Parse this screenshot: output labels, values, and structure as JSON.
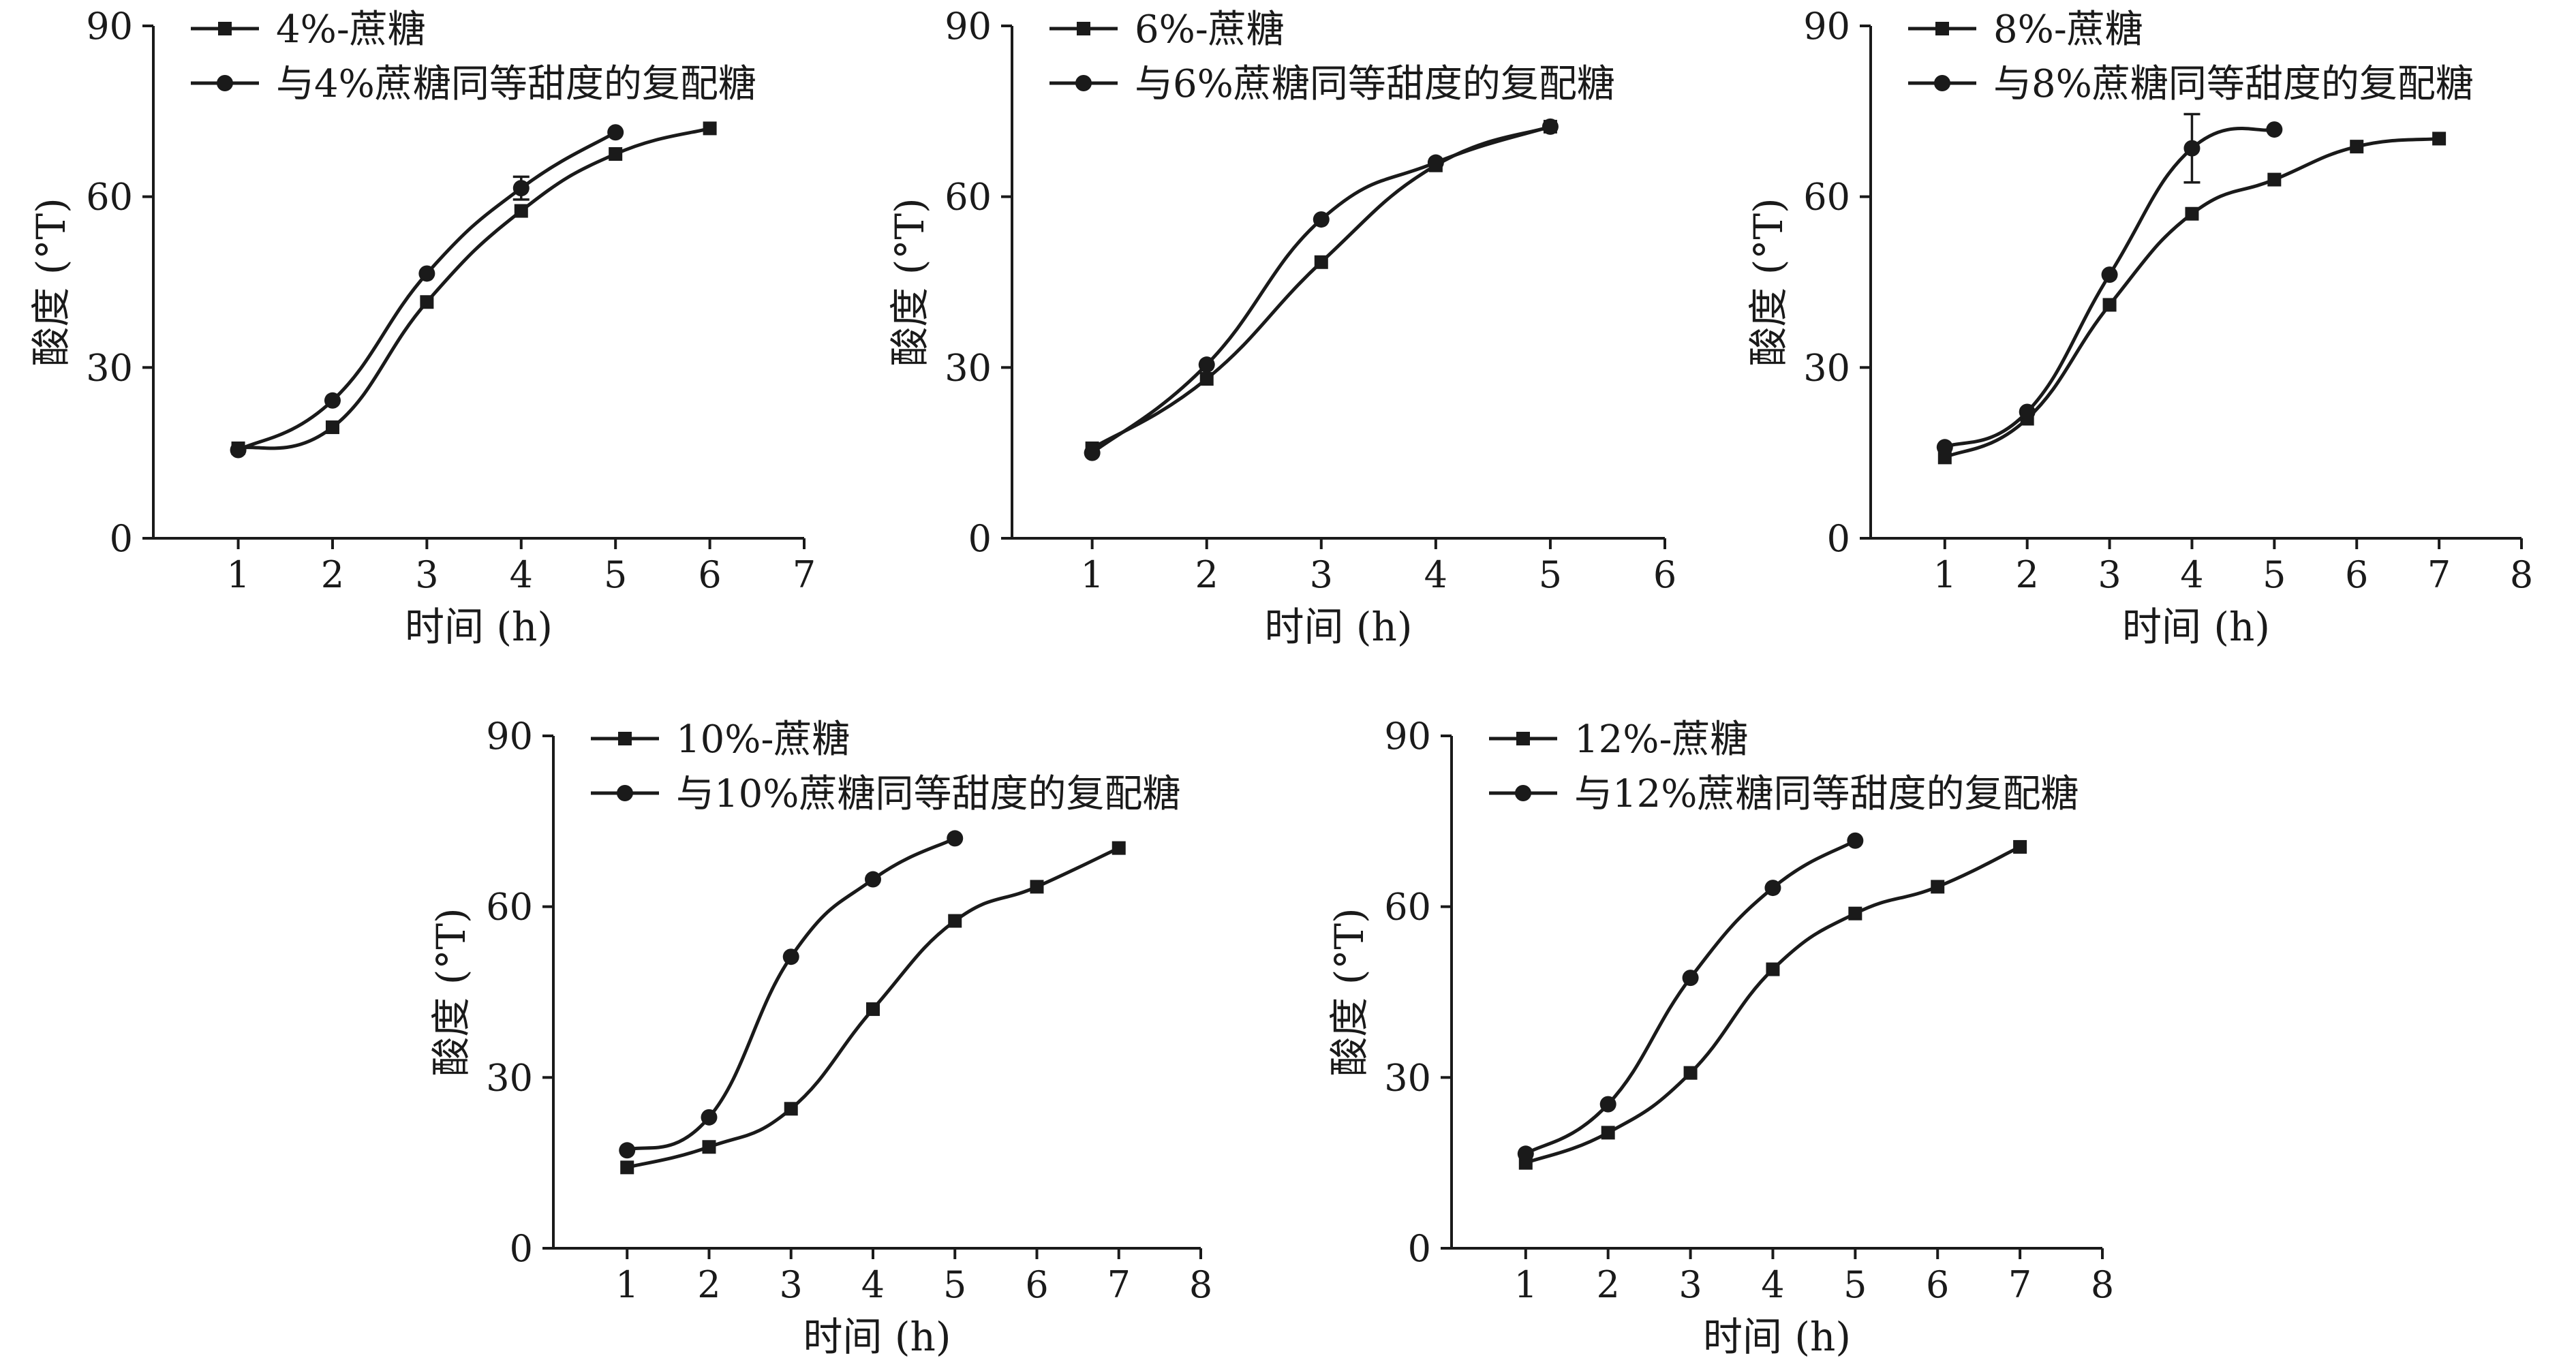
{
  "chart_data": [
    {
      "type": "line",
      "x": [
        1,
        2,
        3,
        4,
        5,
        6
      ],
      "xticks": [
        1,
        2,
        3,
        4,
        5,
        6,
        7
      ],
      "xlim": [
        0.1,
        7
      ],
      "ylim": [
        0,
        90
      ],
      "yticks": [
        0,
        30,
        60,
        90
      ],
      "xlabel": "时间 (h)",
      "ylabel": "酸度 (°T)",
      "legend": "top-left",
      "series": [
        {
          "name": "4%-蔗糖",
          "marker": "square",
          "values": [
            15.8,
            19.5,
            41.5,
            57.5,
            67.5,
            72.0
          ]
        },
        {
          "name": "与4%蔗糖同等甜度的复配糖",
          "marker": "circle",
          "values": [
            15.5,
            24.2,
            46.5,
            61.5,
            71.3,
            null
          ],
          "errors": [
            0,
            0,
            0,
            2.0,
            0,
            0
          ]
        }
      ]
    },
    {
      "type": "line",
      "x": [
        1,
        2,
        3,
        4,
        5
      ],
      "xticks": [
        1,
        2,
        3,
        4,
        5,
        6
      ],
      "xlim": [
        0.3,
        6
      ],
      "ylim": [
        0,
        90
      ],
      "yticks": [
        0,
        30,
        60,
        90
      ],
      "xlabel": "时间 (h)",
      "ylabel": "酸度 (°T)",
      "legend": "top-left",
      "series": [
        {
          "name": "6%-蔗糖",
          "marker": "square",
          "values": [
            15.8,
            28.0,
            48.5,
            65.5,
            72.3
          ]
        },
        {
          "name": "与6%蔗糖同等甜度的复配糖",
          "marker": "circle",
          "values": [
            15.0,
            30.5,
            56.0,
            66.0,
            72.3
          ]
        }
      ]
    },
    {
      "type": "line",
      "x": [
        1,
        2,
        3,
        4,
        5,
        6,
        7
      ],
      "xticks": [
        1,
        2,
        3,
        4,
        5,
        6,
        7,
        8
      ],
      "xlim": [
        0.1,
        8
      ],
      "ylim": [
        0,
        90
      ],
      "yticks": [
        0,
        30,
        60,
        90
      ],
      "xlabel": "时间 (h)",
      "ylabel": "酸度 (°T)",
      "legend": "top-left",
      "series": [
        {
          "name": "8%-蔗糖",
          "marker": "square",
          "values": [
            14.2,
            21.0,
            41.0,
            57.0,
            63.0,
            68.8,
            70.2
          ]
        },
        {
          "name": "与8%蔗糖同等甜度的复配糖",
          "marker": "circle",
          "values": [
            16.0,
            22.2,
            46.3,
            68.5,
            71.8,
            null,
            null
          ],
          "errors": [
            0,
            0,
            0,
            6.0,
            0,
            0,
            0
          ]
        }
      ]
    },
    {
      "type": "line",
      "x": [
        1,
        2,
        3,
        4,
        5,
        6,
        7
      ],
      "xticks": [
        1,
        2,
        3,
        4,
        5,
        6,
        7,
        8
      ],
      "xlim": [
        0.1,
        8
      ],
      "ylim": [
        0,
        90
      ],
      "yticks": [
        0,
        30,
        60,
        90
      ],
      "xlabel": "时间 (h)",
      "ylabel": "酸度 (°T)",
      "legend": "top-left",
      "series": [
        {
          "name": "10%-蔗糖",
          "marker": "square",
          "values": [
            14.2,
            17.8,
            24.5,
            42.0,
            57.5,
            63.5,
            70.3
          ]
        },
        {
          "name": "与10%蔗糖同等甜度的复配糖",
          "marker": "circle",
          "values": [
            17.2,
            23.0,
            51.2,
            64.8,
            72.0,
            null,
            null
          ]
        }
      ]
    },
    {
      "type": "line",
      "x": [
        1,
        2,
        3,
        4,
        5,
        6,
        7
      ],
      "xticks": [
        1,
        2,
        3,
        4,
        5,
        6,
        7,
        8
      ],
      "xlim": [
        0.1,
        8
      ],
      "ylim": [
        0,
        90
      ],
      "yticks": [
        0,
        30,
        60,
        90
      ],
      "xlabel": "时间 (h)",
      "ylabel": "酸度 (°T)",
      "legend": "top-left",
      "series": [
        {
          "name": "12%-蔗糖",
          "marker": "square",
          "values": [
            15.0,
            20.3,
            30.8,
            49.0,
            58.8,
            63.5,
            70.5
          ]
        },
        {
          "name": "与12%蔗糖同等甜度的复配糖",
          "marker": "circle",
          "values": [
            16.6,
            25.3,
            47.5,
            63.3,
            71.6,
            null,
            null
          ]
        }
      ]
    }
  ]
}
